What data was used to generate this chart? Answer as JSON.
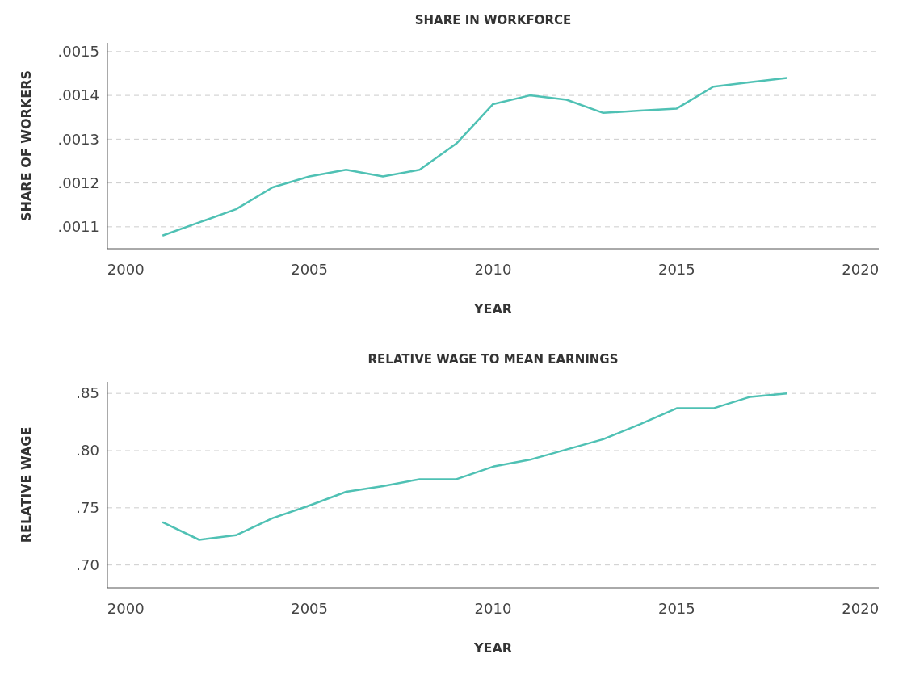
{
  "chart_data": [
    {
      "type": "line",
      "title": "SHARE IN WORKFORCE",
      "xlabel": "YEAR",
      "ylabel": "SHARE OF WORKERS",
      "x": [
        2001,
        2002,
        2003,
        2004,
        2005,
        2006,
        2007,
        2008,
        2009,
        2010,
        2011,
        2012,
        2013,
        2014,
        2015,
        2016,
        2017,
        2018
      ],
      "series": [
        {
          "color": "#4fc1b4",
          "values": [
            0.00108,
            0.00111,
            0.00114,
            0.00119,
            0.001215,
            0.00123,
            0.001215,
            0.00123,
            0.00129,
            0.00138,
            0.0014,
            0.00139,
            0.00136,
            0.001365,
            0.00137,
            0.00142,
            0.00143,
            0.00144
          ]
        }
      ],
      "xlim": [
        1999.5,
        2020.5
      ],
      "xticks": [
        2000,
        2005,
        2010,
        2015,
        2020
      ],
      "ylim": [
        0.00105,
        0.00152
      ],
      "yticks": [
        {
          "value": 0.0011,
          "label": ".0011"
        },
        {
          "value": 0.0012,
          "label": ".0012"
        },
        {
          "value": 0.0013,
          "label": ".0013"
        },
        {
          "value": 0.0014,
          "label": ".0014"
        },
        {
          "value": 0.0015,
          "label": ".0015"
        }
      ],
      "grid": "y",
      "line_style": "solid"
    },
    {
      "type": "line",
      "title": "RELATIVE WAGE TO MEAN EARNINGS",
      "xlabel": "YEAR",
      "ylabel": "RELATIVE WAGE",
      "x": [
        2001,
        2002,
        2003,
        2004,
        2005,
        2006,
        2007,
        2008,
        2009,
        2010,
        2011,
        2012,
        2013,
        2014,
        2015,
        2016,
        2017,
        2018
      ],
      "series": [
        {
          "color": "#4fc1b4",
          "values": [
            0.7375,
            0.722,
            0.726,
            0.741,
            0.752,
            0.764,
            0.769,
            0.775,
            0.775,
            0.786,
            0.792,
            0.801,
            0.81,
            0.823,
            0.837,
            0.837,
            0.847,
            0.85
          ]
        }
      ],
      "xlim": [
        1999.5,
        2020.5
      ],
      "xticks": [
        2000,
        2005,
        2010,
        2015,
        2020
      ],
      "ylim": [
        0.68,
        0.86
      ],
      "yticks": [
        {
          "value": 0.7,
          "label": ".70"
        },
        {
          "value": 0.75,
          "label": ".75"
        },
        {
          "value": 0.8,
          "label": ".80"
        },
        {
          "value": 0.85,
          "label": ".85"
        }
      ],
      "grid": "y",
      "line_style": "solid"
    }
  ]
}
